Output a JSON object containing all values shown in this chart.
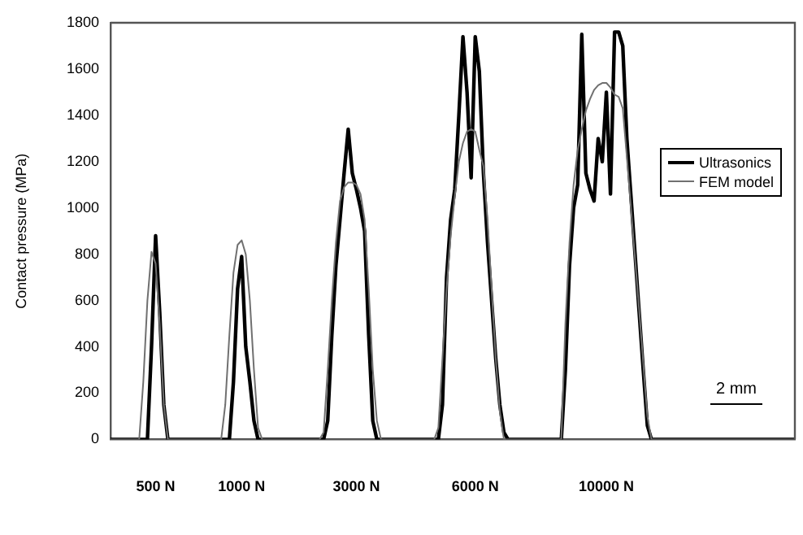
{
  "chart_data": {
    "type": "line",
    "ylabel": "Contact pressure (MPa)",
    "ylim": [
      0,
      1800
    ],
    "yticks": [
      0,
      200,
      400,
      600,
      800,
      1000,
      1200,
      1400,
      1600,
      1800
    ],
    "grid": false,
    "legend": "right",
    "marker": "none",
    "annotations": [
      "2 mm"
    ],
    "categories": [
      null,
      null,
      null,
      null,
      null,
      null,
      null,
      null,
      null,
      null,
      null,
      "500 N",
      null,
      null,
      null,
      null,
      null,
      null,
      null,
      null,
      null,
      null,
      null,
      null,
      null,
      null,
      null,
      null,
      null,
      null,
      null,
      null,
      "1000 N",
      null,
      null,
      null,
      null,
      null,
      null,
      null,
      null,
      null,
      null,
      null,
      null,
      null,
      null,
      null,
      null,
      null,
      null,
      null,
      null,
      null,
      null,
      null,
      null,
      null,
      null,
      null,
      "3000 N",
      null,
      null,
      null,
      null,
      null,
      null,
      null,
      null,
      null,
      null,
      null,
      null,
      null,
      null,
      null,
      null,
      null,
      null,
      null,
      null,
      null,
      null,
      null,
      null,
      null,
      null,
      null,
      null,
      "6000 N",
      null,
      null,
      null,
      null,
      null,
      null,
      null,
      null,
      null,
      null,
      null,
      null,
      null,
      null,
      null,
      null,
      null,
      null,
      null,
      null,
      null,
      null,
      null,
      null,
      null,
      null,
      null,
      null,
      null,
      null,
      null,
      "10000 N",
      null,
      null,
      null,
      null,
      null,
      null,
      null,
      null,
      null,
      null,
      null,
      null,
      null,
      null,
      null,
      null,
      null,
      null,
      null,
      null,
      null,
      null,
      null,
      null,
      null,
      null,
      null,
      null,
      null,
      null,
      null,
      null,
      null,
      null,
      null,
      null,
      null,
      null,
      null,
      null,
      null,
      null,
      null,
      null,
      null,
      null
    ],
    "series": [
      {
        "name": "FEM model",
        "color": "#707070",
        "values": [
          0,
          0,
          0,
          0,
          0,
          0,
          0,
          0,
          250,
          600,
          810,
          760,
          500,
          150,
          0,
          0,
          0,
          0,
          0,
          0,
          0,
          0,
          0,
          0,
          0,
          0,
          0,
          0,
          150,
          450,
          720,
          840,
          860,
          800,
          600,
          300,
          50,
          0,
          0,
          0,
          0,
          0,
          0,
          0,
          0,
          0,
          0,
          0,
          0,
          0,
          0,
          0,
          30,
          300,
          600,
          850,
          1030,
          1090,
          1110,
          1110,
          1100,
          1060,
          950,
          650,
          300,
          80,
          0,
          0,
          0,
          0,
          0,
          0,
          0,
          0,
          0,
          0,
          0,
          0,
          0,
          0,
          50,
          350,
          650,
          880,
          1050,
          1200,
          1280,
          1330,
          1340,
          1330,
          1250,
          1180,
          950,
          650,
          350,
          120,
          0,
          0,
          0,
          0,
          0,
          0,
          0,
          0,
          0,
          0,
          0,
          0,
          0,
          0,
          0,
          500,
          850,
          1100,
          1250,
          1340,
          1420,
          1470,
          1510,
          1530,
          1540,
          1540,
          1520,
          1490,
          1480,
          1430,
          1220,
          1000,
          780,
          560,
          330,
          100,
          0,
          0,
          0,
          0,
          0,
          0,
          0,
          0,
          0,
          0,
          0,
          0,
          0,
          0,
          0,
          0,
          0,
          0,
          0,
          0,
          0,
          0,
          0,
          0,
          0,
          0,
          0,
          0,
          0,
          0,
          0,
          0,
          0,
          0,
          0,
          0
        ]
      },
      {
        "name": "Ultrasonics",
        "color": "#000000",
        "values": [
          0,
          0,
          0,
          0,
          0,
          0,
          0,
          0,
          0,
          0,
          400,
          880,
          550,
          150,
          0,
          0,
          0,
          0,
          0,
          0,
          0,
          0,
          0,
          0,
          0,
          0,
          0,
          0,
          0,
          0,
          250,
          650,
          790,
          400,
          250,
          80,
          0,
          0,
          0,
          0,
          0,
          0,
          0,
          0,
          0,
          0,
          0,
          0,
          0,
          0,
          0,
          0,
          0,
          80,
          450,
          750,
          950,
          1150,
          1340,
          1150,
          1080,
          1000,
          900,
          450,
          80,
          0,
          0,
          0,
          0,
          0,
          0,
          0,
          0,
          0,
          0,
          0,
          0,
          0,
          0,
          0,
          0,
          150,
          700,
          950,
          1080,
          1400,
          1740,
          1500,
          1130,
          1740,
          1590,
          1150,
          850,
          600,
          350,
          150,
          30,
          0,
          0,
          0,
          0,
          0,
          0,
          0,
          0,
          0,
          0,
          0,
          0,
          0,
          0,
          300,
          750,
          1000,
          1100,
          1750,
          1150,
          1080,
          1030,
          1300,
          1200,
          1500,
          1060,
          1760,
          1760,
          1700,
          1300,
          1050,
          800,
          550,
          300,
          60,
          0,
          0,
          0,
          0,
          0,
          0,
          0,
          0,
          0,
          0,
          0,
          0,
          0,
          0,
          0,
          0,
          0,
          0,
          0,
          0,
          0,
          0,
          0,
          0,
          0,
          0,
          0,
          0,
          0,
          0,
          0,
          0,
          0,
          0,
          0,
          0
        ]
      }
    ]
  }
}
